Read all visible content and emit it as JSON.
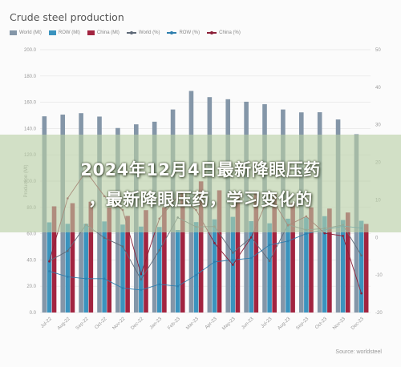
{
  "headline": {
    "line1": "2024年12月4日最新降眼压药",
    "line2": "，最新降眼压药，学习变化的"
  },
  "source": "Source: worldsteel",
  "colors": {
    "world": "#8496a8",
    "row": "#3a93be",
    "china": "#a22440",
    "banner": "#b8cea4"
  },
  "chart_data": {
    "type": "bar",
    "title": "Crude steel production",
    "categories": [
      "Jul-22",
      "Aug-22",
      "Sep-22",
      "Oct-22",
      "Nov-22",
      "Dec-22",
      "Jan-23",
      "Feb-23",
      "Mar-23",
      "Apr-23",
      "May-23",
      "Jun-23",
      "Jul-23",
      "Aug-23",
      "Sep-23",
      "Oct-23",
      "Nov-23",
      "Dec-23"
    ],
    "left_axis": {
      "ylim": [
        0,
        200
      ],
      "ticks": [
        "0.0",
        "20.0",
        "40.0",
        "60.0",
        "80.0",
        "100.0",
        "120.0",
        "140.0",
        "160.0",
        "180.0",
        "200.0"
      ],
      "label": "Production (Mt)"
    },
    "right_axis": {
      "ylim": [
        -20,
        50
      ],
      "ticks": [
        "-20",
        "-10",
        "0",
        "10",
        "20",
        "30",
        "40",
        "50"
      ]
    },
    "grid": true,
    "legend_position": "top-left",
    "series": [
      {
        "name": "World (Mt)",
        "kind": "bar",
        "values": [
          149.3,
          150.6,
          151.7,
          149.1,
          140.4,
          143.2,
          145.2,
          154.5,
          168.6,
          163.9,
          162.3,
          160.4,
          158.5,
          154.5,
          152.3,
          152.4,
          146.9,
          135.7
        ]
      },
      {
        "name": "ROW (Mt)",
        "kind": "bar",
        "values": [
          68.6,
          67.5,
          67.5,
          69.3,
          66.9,
          65.4,
          65.1,
          62.8,
          68.8,
          70.9,
          72.8,
          69.5,
          67.9,
          71.4,
          72.3,
          73.3,
          70.4,
          69.8
        ]
      },
      {
        "name": "China (Mt)",
        "kind": "bar",
        "values": [
          80.8,
          83.2,
          84.3,
          79.8,
          73.5,
          77.9,
          80.1,
          91.7,
          99.8,
          93.0,
          89.6,
          90.8,
          90.8,
          83.2,
          80.0,
          79.1,
          76.1,
          67.4
        ]
      },
      {
        "name": "World (%)",
        "kind": "line",
        "values": [
          -6.3,
          -3.6,
          3.4,
          -0.1,
          -2.4,
          -11.2,
          -3.4,
          5.3,
          2.8,
          2.9,
          -4.1,
          0.0,
          -6.3,
          3.4,
          2.0,
          2.4,
          3.3,
          -4.8
        ]
      },
      {
        "name": "ROW (%)",
        "kind": "line",
        "values": [
          -9.0,
          -10.5,
          -11.0,
          -11.0,
          -13.5,
          -14.0,
          -12.5,
          -13.0,
          -10.0,
          -6.5,
          -6.0,
          -5.5,
          -2.0,
          -1.0,
          1.0,
          2.0,
          3.0,
          2.5
        ]
      },
      {
        "name": "China (%)",
        "kind": "line",
        "values": [
          -6.4,
          10.4,
          17.6,
          11.0,
          7.3,
          -9.8,
          5.0,
          10.9,
          7.3,
          -1.5,
          -7.3,
          0.0,
          11.5,
          3.2,
          5.6,
          1.1,
          0.4,
          -14.9
        ]
      }
    ]
  }
}
